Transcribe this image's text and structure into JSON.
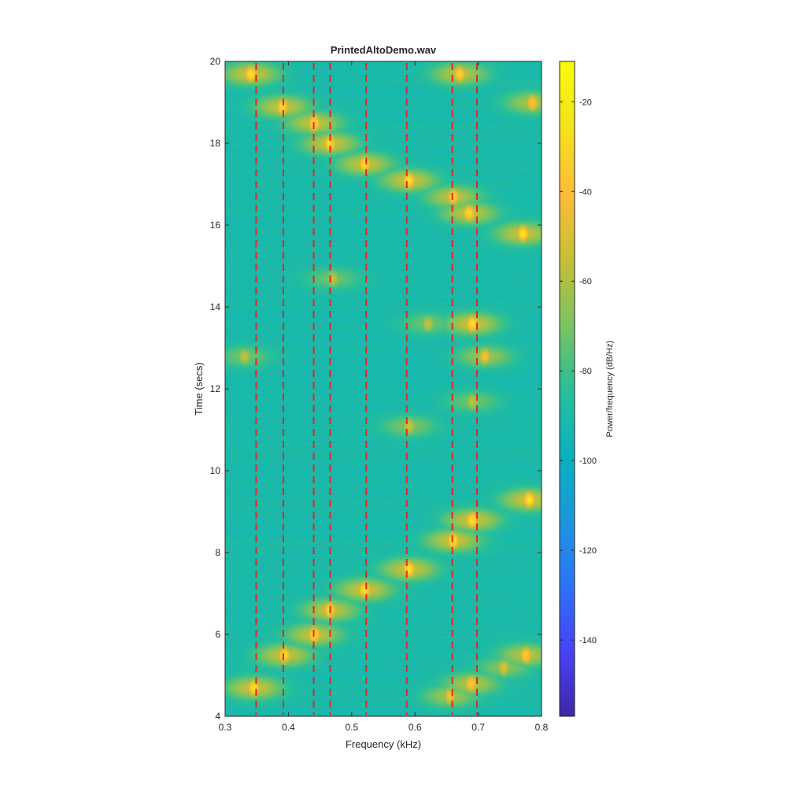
{
  "chart_data": {
    "type": "heatmap",
    "title": "PrintedAltoDemo.wav",
    "xlabel": "Frequency (kHz)",
    "ylabel": "Time (secs)",
    "xlim": [
      0.3,
      0.8
    ],
    "ylim": [
      4,
      20
    ],
    "xticks": [
      0.3,
      0.4,
      0.5,
      0.6,
      0.7,
      0.8
    ],
    "xtick_labels": [
      "0.3",
      "0.4",
      "0.5",
      "0.6",
      "0.7",
      "0.8"
    ],
    "yticks": [
      4,
      6,
      8,
      10,
      12,
      14,
      16,
      18,
      20
    ],
    "ytick_labels": [
      "4",
      "6",
      "8",
      "10",
      "12",
      "14",
      "16",
      "18",
      "20"
    ],
    "colorbar": {
      "label": "Power/frequency (dB/Hz)",
      "range": [
        -157,
        -11
      ],
      "ticks": [
        -20,
        -40,
        -60,
        -80,
        -100,
        -120,
        -140
      ],
      "tick_labels": [
        "-20",
        "-40",
        "-60",
        "-80",
        "-100",
        "-120",
        "-140"
      ],
      "colormap": [
        "#3e26a8",
        "#4743f8",
        "#2c74f7",
        "#1b97dd",
        "#0ab2be",
        "#29bf98",
        "#7cc45f",
        "#c8bf36",
        "#febc38",
        "#f4e21a",
        "#f9fb0e"
      ]
    },
    "background_level_db": -92,
    "reference_lines": {
      "color": "#e3262b",
      "style": "dashed",
      "frequencies_khz": [
        0.349,
        0.392,
        0.44,
        0.466,
        0.523,
        0.587,
        0.659,
        0.698
      ]
    },
    "dark_bands_secs": [
      4.1,
      8.5,
      10.05,
      11.55,
      12.35,
      12.55,
      12.75,
      13.3,
      13.8,
      16.05,
      18.7,
      19.3
    ],
    "peaks": [
      {
        "t": 4.7,
        "f": 0.345,
        "db": -22
      },
      {
        "t": 4.5,
        "f": 0.655,
        "db": -40
      },
      {
        "t": 4.8,
        "f": 0.688,
        "db": -32
      },
      {
        "t": 5.5,
        "f": 0.393,
        "db": -25
      },
      {
        "t": 5.5,
        "f": 0.775,
        "db": -30
      },
      {
        "t": 5.2,
        "f": 0.74,
        "db": -48
      },
      {
        "t": 6.0,
        "f": 0.44,
        "db": -25
      },
      {
        "t": 6.6,
        "f": 0.465,
        "db": -25
      },
      {
        "t": 7.1,
        "f": 0.52,
        "db": -22
      },
      {
        "t": 7.6,
        "f": 0.59,
        "db": -22
      },
      {
        "t": 8.3,
        "f": 0.66,
        "db": -22
      },
      {
        "t": 8.8,
        "f": 0.69,
        "db": -22
      },
      {
        "t": 9.3,
        "f": 0.78,
        "db": -20
      },
      {
        "t": 11.1,
        "f": 0.59,
        "db": -50
      },
      {
        "t": 11.7,
        "f": 0.69,
        "db": -55
      },
      {
        "t": 12.8,
        "f": 0.71,
        "db": -40
      },
      {
        "t": 12.8,
        "f": 0.33,
        "db": -55
      },
      {
        "t": 13.6,
        "f": 0.69,
        "db": -22
      },
      {
        "t": 13.6,
        "f": 0.62,
        "db": -55
      },
      {
        "t": 14.7,
        "f": 0.47,
        "db": -55
      },
      {
        "t": 15.8,
        "f": 0.77,
        "db": -22
      },
      {
        "t": 16.3,
        "f": 0.685,
        "db": -25
      },
      {
        "t": 16.7,
        "f": 0.66,
        "db": -28
      },
      {
        "t": 17.1,
        "f": 0.59,
        "db": -22
      },
      {
        "t": 17.5,
        "f": 0.52,
        "db": -25
      },
      {
        "t": 18.0,
        "f": 0.465,
        "db": -22
      },
      {
        "t": 18.5,
        "f": 0.44,
        "db": -25
      },
      {
        "t": 18.9,
        "f": 0.39,
        "db": -25
      },
      {
        "t": 19.0,
        "f": 0.785,
        "db": -35
      },
      {
        "t": 19.7,
        "f": 0.34,
        "db": -22
      },
      {
        "t": 19.7,
        "f": 0.67,
        "db": -28
      }
    ]
  }
}
